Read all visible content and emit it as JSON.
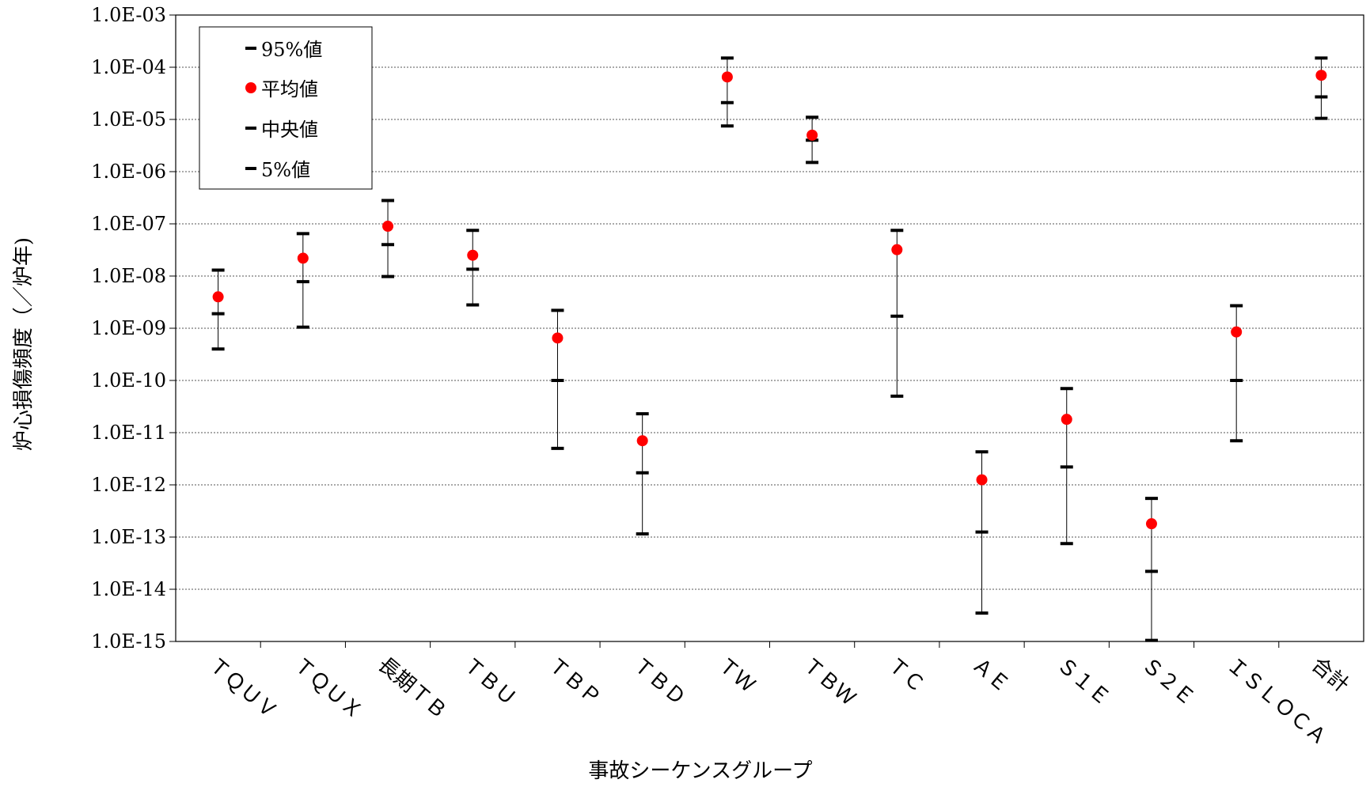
{
  "chart_data": {
    "type": "scatter",
    "title": "",
    "xlabel": "事故シーケンスグループ",
    "ylabel": "炉心損傷頻度（／炉年)",
    "yscale": "log",
    "ylim": [
      1e-15,
      0.001
    ],
    "y_tick_labels": [
      "1.0E-15",
      "1.0E-14",
      "1.0E-13",
      "1.0E-12",
      "1.0E-11",
      "1.0E-10",
      "1.0E-09",
      "1.0E-08",
      "1.0E-07",
      "1.0E-06",
      "1.0E-05",
      "1.0E-04",
      "1.0E-03"
    ],
    "grid": true,
    "legend_position": "top-left",
    "categories": [
      "ＴＱＵＶ",
      "ＴＱＵＸ",
      "長期ＴＢ",
      "ＴＢＵ",
      "ＴＢＰ",
      "ＴＢＤ",
      "ＴＷ",
      "ＴＢＷ",
      "ＴＣ",
      "ＡＥ",
      "Ｓ１Ｅ",
      "Ｓ２Ｅ",
      "ＩＳＬＯＣＡ",
      "合計"
    ],
    "series": [
      {
        "name": "95%値",
        "marker": "dash",
        "color": "#000000",
        "values": [
          1.3e-08,
          6.5e-08,
          2.8e-07,
          7.5e-08,
          2.2e-09,
          2.3e-11,
          0.00015,
          1.1e-05,
          7.5e-08,
          4.3e-12,
          7e-11,
          5.5e-13,
          2.7e-09,
          0.00015
        ]
      },
      {
        "name": "平均値",
        "marker": "circle",
        "color": "#ff0000",
        "values": [
          4e-09,
          2.2e-08,
          9e-08,
          2.5e-08,
          6.5e-10,
          7e-12,
          6.5e-05,
          5e-06,
          3.2e-08,
          1.25e-12,
          1.8e-11,
          1.8e-13,
          8.5e-10,
          7e-05
        ]
      },
      {
        "name": "中央値",
        "marker": "dash",
        "color": "#000000",
        "values": [
          1.9e-09,
          7.8e-09,
          4e-08,
          1.35e-08,
          1e-10,
          1.7e-12,
          2.1e-05,
          4e-06,
          1.7e-09,
          1.25e-13,
          2.2e-12,
          2.2e-14,
          1e-10,
          2.7e-05
        ]
      },
      {
        "name": "5%値",
        "marker": "dash",
        "color": "#000000",
        "values": [
          4e-10,
          1.05e-09,
          9.8e-09,
          2.8e-09,
          5e-12,
          1.15e-13,
          7.5e-06,
          1.5e-06,
          5e-11,
          3.5e-15,
          7.5e-14,
          1.05e-15,
          7e-12,
          1.05e-05
        ]
      }
    ]
  }
}
